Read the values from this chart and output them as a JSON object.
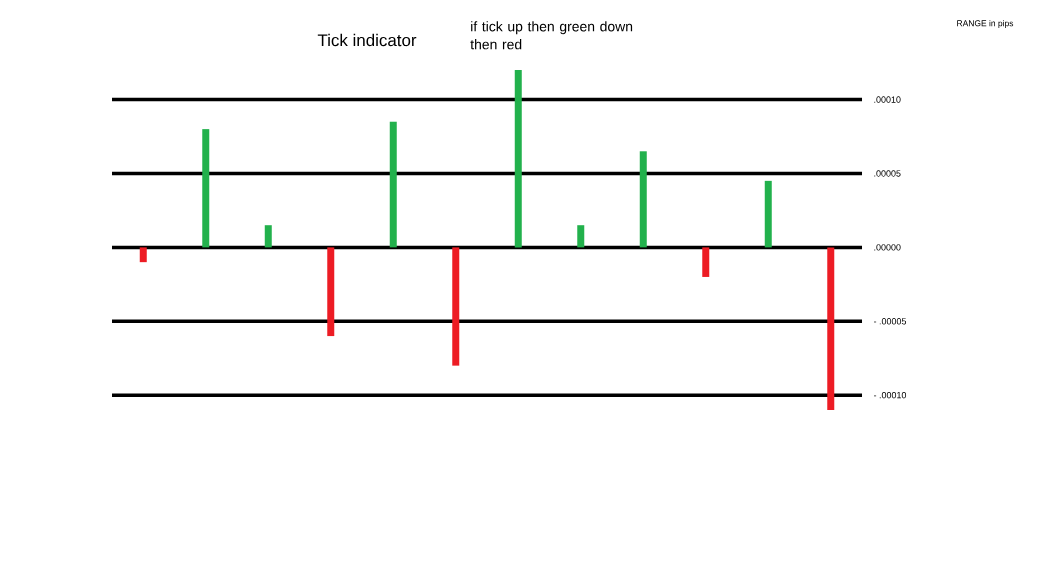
{
  "chart_data": {
    "type": "bar",
    "title": "Tick indicator",
    "annotations": [
      "if tick up then green down then red",
      "RANGE in pips"
    ],
    "categories": [
      null,
      null,
      null,
      null,
      null,
      null,
      null,
      null,
      null,
      null,
      null,
      null
    ],
    "values": [
      -1e-05,
      8e-05,
      1.5e-05,
      -6e-05,
      8.5e-05,
      -8e-05,
      0.00012,
      1.5e-05,
      6.5e-05,
      -2e-05,
      4.5e-05,
      -0.00011
    ],
    "colors": [
      "#ed1c24",
      "#22b14c",
      "#22b14c",
      "#ed1c24",
      "#22b14c",
      "#ed1c24",
      "#22b14c",
      "#22b14c",
      "#22b14c",
      "#ed1c24",
      "#22b14c",
      "#ed1c24"
    ],
    "yticks": [
      {
        "value": -0.0001,
        "label": "- .00010"
      },
      {
        "value": -5e-05,
        "label": "- .00005"
      },
      {
        "value": 0,
        "label": ".00000"
      },
      {
        "value": 5e-05,
        "label": ".00005"
      },
      {
        "value": 0.0001,
        "label": ".00010"
      }
    ],
    "ylim": [
      -0.00011,
      0.00012
    ],
    "grid": "y"
  }
}
